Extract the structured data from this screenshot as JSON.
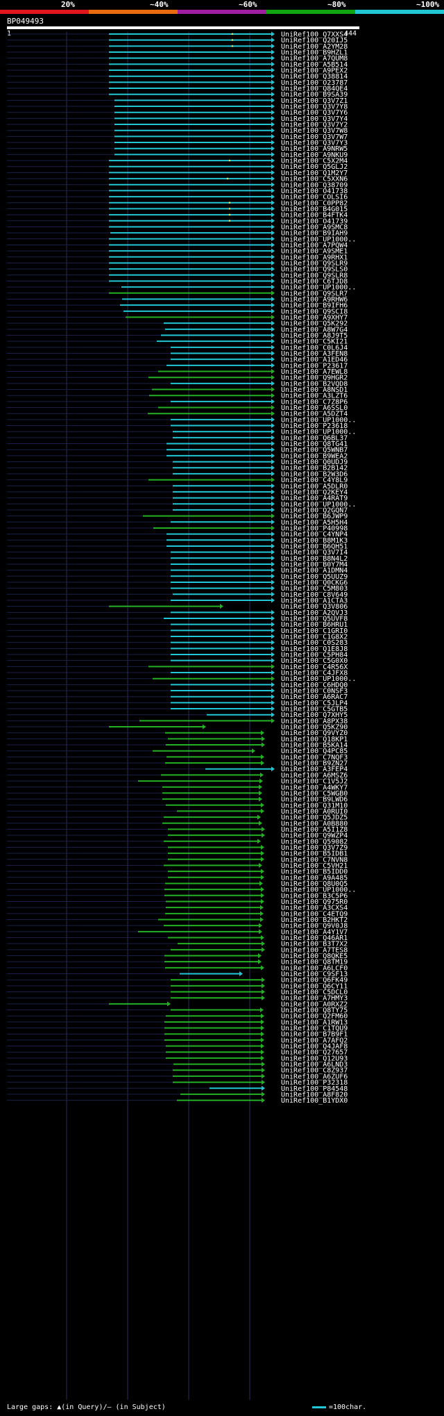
{
  "legend": {
    "labels": [
      "20%",
      "~40%",
      "~60%",
      "~80%",
      "~100%"
    ],
    "colors": [
      "#e0161c",
      "#e86c0f",
      "#a01fa0",
      "#11a511",
      "#22c7d6"
    ]
  },
  "query": {
    "id": "BP049493",
    "start": "1",
    "end": "444"
  },
  "colors": {
    "cyan": "#22c7d6",
    "green": "#24b024",
    "grid": "#2a2f5a"
  },
  "hits": [
    {
      "name": "UniRef100_Q7XXS4",
      "start": 157,
      "color": "c",
      "note": [
        335
      ]
    },
    {
      "name": "UniRef100_Q20IJ5",
      "start": 157,
      "color": "c",
      "note": [
        335
      ]
    },
    {
      "name": "UniRef100_A2YM28",
      "start": 157,
      "color": "c",
      "note": [
        335
      ]
    },
    {
      "name": "UniRef100_B9HZL1",
      "start": 157,
      "color": "c"
    },
    {
      "name": "UniRef100_A7QUM8",
      "start": 157,
      "color": "c"
    },
    {
      "name": "UniRef100_A5B514",
      "start": 157,
      "color": "c"
    },
    {
      "name": "UniRef100_A9PEX2",
      "start": 157,
      "color": "c"
    },
    {
      "name": "UniRef100_Q38814",
      "start": 157,
      "color": "c"
    },
    {
      "name": "UniRef100_O23787",
      "start": 157,
      "color": "c"
    },
    {
      "name": "UniRef100_Q84QE4",
      "start": 157,
      "color": "c"
    },
    {
      "name": "UniRef100_B9SA39",
      "start": 157,
      "color": "c"
    },
    {
      "name": "UniRef100_Q3V7Z1",
      "start": 165,
      "color": "c"
    },
    {
      "name": "UniRef100_Q3V7Y8",
      "start": 165,
      "color": "c"
    },
    {
      "name": "UniRef100_Q3V7Y6",
      "start": 165,
      "color": "c"
    },
    {
      "name": "UniRef100_Q3V7Y4",
      "start": 165,
      "color": "c"
    },
    {
      "name": "UniRef100_Q3V7Y2",
      "start": 165,
      "color": "c"
    },
    {
      "name": "UniRef100_Q3V7W8",
      "start": 165,
      "color": "c"
    },
    {
      "name": "UniRef100_Q3V7W7",
      "start": 165,
      "color": "c"
    },
    {
      "name": "UniRef100_Q3V7Y3",
      "start": 165,
      "color": "c"
    },
    {
      "name": "UniRef100_A9NRW5",
      "start": 165,
      "color": "c"
    },
    {
      "name": "UniRef100_A9NKU9",
      "start": 165,
      "color": "c"
    },
    {
      "name": "UniRef100_C5X2M4",
      "start": 157,
      "color": "c",
      "note": [
        331
      ]
    },
    {
      "name": "UniRef100_Q5GLJ2",
      "start": 157,
      "color": "c"
    },
    {
      "name": "UniRef100_Q1M2Y7",
      "start": 157,
      "color": "c"
    },
    {
      "name": "UniRef100_C5XXN6",
      "start": 157,
      "color": "c",
      "note": [
        328
      ]
    },
    {
      "name": "UniRef100_Q38709",
      "start": 157,
      "color": "c"
    },
    {
      "name": "UniRef100_O41738",
      "start": 157,
      "color": "c"
    },
    {
      "name": "UniRef100_COLSI6",
      "start": 157,
      "color": "c"
    },
    {
      "name": "UniRef100_C0PP82",
      "start": 157,
      "color": "c",
      "note": [
        331
      ]
    },
    {
      "name": "UniRef100_B4G015",
      "start": 157,
      "color": "c",
      "note": [
        331
      ]
    },
    {
      "name": "UniRef100_B4FTK4",
      "start": 157,
      "color": "c",
      "note": [
        331
      ]
    },
    {
      "name": "UniRef100_O41739",
      "start": 157,
      "color": "c",
      "note": [
        331
      ]
    },
    {
      "name": "UniRef100_A9SMC8",
      "start": 157,
      "color": "c"
    },
    {
      "name": "UniRef100_B9IAH9",
      "start": 159,
      "color": "c"
    },
    {
      "name": "UniRef100_UP1000..",
      "start": 157,
      "color": "c"
    },
    {
      "name": "UniRef100_A7PQW4",
      "start": 157,
      "color": "c"
    },
    {
      "name": "UniRef100_A9SME1",
      "start": 157,
      "color": "c"
    },
    {
      "name": "UniRef100_A9RHX1",
      "start": 157,
      "color": "c"
    },
    {
      "name": "UniRef100_Q9SLR9",
      "start": 157,
      "color": "c"
    },
    {
      "name": "UniRef100_Q9SLS0",
      "start": 157,
      "color": "c"
    },
    {
      "name": "UniRef100_Q9SLR8",
      "start": 157,
      "color": "c"
    },
    {
      "name": "UniRef100_C6TJD8",
      "start": 157,
      "color": "c"
    },
    {
      "name": "UniRef100_UP1000..",
      "start": 175,
      "color": "c"
    },
    {
      "name": "UniRef100_Q9SLR7",
      "start": 157,
      "color": "g"
    },
    {
      "name": "UniRef100_A9RHW6",
      "start": 176,
      "color": "c"
    },
    {
      "name": "UniRef100_B9IFH6",
      "start": 173,
      "color": "c"
    },
    {
      "name": "UniRef100_Q9SCI8",
      "start": 178,
      "color": "c"
    },
    {
      "name": "UniRef100_A9XHY7",
      "start": 181,
      "color": "g"
    },
    {
      "name": "UniRef100_Q5K292",
      "start": 236,
      "color": "c"
    },
    {
      "name": "UniRef100_A8W7G4",
      "start": 238,
      "color": "c"
    },
    {
      "name": "UniRef100_A8J9T5",
      "start": 232,
      "color": "c"
    },
    {
      "name": "UniRef100_C5KI21",
      "start": 226,
      "color": "c"
    },
    {
      "name": "UniRef100_C0L6J4",
      "start": 246,
      "color": "c"
    },
    {
      "name": "UniRef100_A3FEN8",
      "start": 246,
      "color": "c"
    },
    {
      "name": "UniRef100_A1ED46",
      "start": 246,
      "color": "c"
    },
    {
      "name": "UniRef100_P23617",
      "start": 240,
      "color": "c"
    },
    {
      "name": "UniRef100_A7EWL8",
      "start": 228,
      "color": "g"
    },
    {
      "name": "UniRef100_Q9HGR2",
      "start": 214,
      "color": "g"
    },
    {
      "name": "UniRef100_B2VQD8",
      "start": 246,
      "color": "c"
    },
    {
      "name": "UniRef100_A8NSD1",
      "start": 219,
      "color": "g"
    },
    {
      "name": "UniRef100_A3LZT6",
      "start": 215,
      "color": "g"
    },
    {
      "name": "UniRef100_C7Z8P6",
      "start": 246,
      "color": "c"
    },
    {
      "name": "UniRef100_A6SSL0",
      "start": 228,
      "color": "g"
    },
    {
      "name": "UniRef100_A5DZT4",
      "start": 213,
      "color": "g"
    },
    {
      "name": "UniRef100_UP1000..",
      "start": 246,
      "color": "c"
    },
    {
      "name": "UniRef100_P23618",
      "start": 246,
      "color": "c"
    },
    {
      "name": "UniRef100_UP1000..",
      "start": 249,
      "color": "c"
    },
    {
      "name": "UniRef100_Q6BL37",
      "start": 249,
      "color": "c"
    },
    {
      "name": "UniRef100_Q8TG41",
      "start": 240,
      "color": "c"
    },
    {
      "name": "UniRef100_Q5WNB7",
      "start": 240,
      "color": "c"
    },
    {
      "name": "UniRef100_B9WEA2",
      "start": 240,
      "color": "c"
    },
    {
      "name": "UniRef100_Q0UDJ9",
      "start": 249,
      "color": "c"
    },
    {
      "name": "UniRef100_B2B142",
      "start": 249,
      "color": "c"
    },
    {
      "name": "UniRef100_B2W3D6",
      "start": 249,
      "color": "c"
    },
    {
      "name": "UniRef100_C4Y8L9",
      "start": 214,
      "color": "g"
    },
    {
      "name": "UniRef100_A5DLR0",
      "start": 249,
      "color": "c"
    },
    {
      "name": "UniRef100_Q2KEY4",
      "start": 249,
      "color": "c"
    },
    {
      "name": "UniRef100_A4RAT9",
      "start": 249,
      "color": "c"
    },
    {
      "name": "UniRef100_UP1000..",
      "start": 249,
      "color": "c"
    },
    {
      "name": "UniRef100_Q2GQN7",
      "start": 249,
      "color": "c"
    },
    {
      "name": "UniRef100_B6JWP9",
      "start": 206,
      "color": "g"
    },
    {
      "name": "UniRef100_A5H5H4",
      "start": 246,
      "color": "c"
    },
    {
      "name": "UniRef100_P40998",
      "start": 221,
      "color": "g"
    },
    {
      "name": "UniRef100_C4YNP4",
      "start": 240,
      "color": "c"
    },
    {
      "name": "UniRef100_B8M1K3",
      "start": 240,
      "color": "c"
    },
    {
      "name": "UniRef100_B6QH51",
      "start": 240,
      "color": "c"
    },
    {
      "name": "UniRef100_Q3V7I4",
      "start": 246,
      "color": "c"
    },
    {
      "name": "UniRef100_B8N4L2",
      "start": 246,
      "color": "c"
    },
    {
      "name": "UniRef100_B0Y7M4",
      "start": 246,
      "color": "c"
    },
    {
      "name": "UniRef100_A1DMN4",
      "start": 246,
      "color": "c"
    },
    {
      "name": "UniRef100_Q5UUZ9",
      "start": 246,
      "color": "c"
    },
    {
      "name": "UniRef100_Q0CKG6",
      "start": 246,
      "color": "c"
    },
    {
      "name": "UniRef100_C5M803",
      "start": 246,
      "color": "c"
    },
    {
      "name": "UniRef100_C8V649",
      "start": 249,
      "color": "c"
    },
    {
      "name": "UniRef100_A1CTA3",
      "start": 246,
      "color": "c"
    },
    {
      "name": "UniRef100_Q3V806",
      "start": 157,
      "color": "g",
      "end": 322
    },
    {
      "name": "UniRef100_A2QVJ3",
      "start": 246,
      "color": "c"
    },
    {
      "name": "UniRef100_Q5UVF8",
      "start": 236,
      "color": "c"
    },
    {
      "name": "UniRef100_B6HRU1",
      "start": 246,
      "color": "c"
    },
    {
      "name": "UniRef100_C1GRI0",
      "start": 246,
      "color": "c"
    },
    {
      "name": "UniRef100_C1G8X2",
      "start": 246,
      "color": "c"
    },
    {
      "name": "UniRef100_C0S283",
      "start": 246,
      "color": "c"
    },
    {
      "name": "UniRef100_Q1E8J8",
      "start": 246,
      "color": "c"
    },
    {
      "name": "UniRef100_C5PH84",
      "start": 246,
      "color": "c"
    },
    {
      "name": "UniRef100_C5G0X0",
      "start": 246,
      "color": "c"
    },
    {
      "name": "UniRef100_C4R56X",
      "start": 214,
      "color": "g"
    },
    {
      "name": "UniRef100_C4JFX8",
      "start": 246,
      "color": "c"
    },
    {
      "name": "UniRef100_UP1000..",
      "start": 220,
      "color": "g"
    },
    {
      "name": "UniRef100_C6HDQ0",
      "start": 246,
      "color": "c"
    },
    {
      "name": "UniRef100_C0NSF3",
      "start": 246,
      "color": "c"
    },
    {
      "name": "UniRef100_A6RAC7",
      "start": 246,
      "color": "c"
    },
    {
      "name": "UniRef100_C5JLP4",
      "start": 246,
      "color": "c"
    },
    {
      "name": "UniRef100_C5GTB5",
      "start": 246,
      "color": "c"
    },
    {
      "name": "UniRef100_Q7XHY5",
      "start": 298,
      "color": "c"
    },
    {
      "name": "UniRef100_A8PX38",
      "start": 201,
      "color": "g"
    },
    {
      "name": "UniRef100_Q5KZ90",
      "start": 157,
      "color": "g",
      "end": 297
    },
    {
      "name": "UniRef100_Q9VYZ0",
      "start": 238,
      "color": "g",
      "end": 381
    },
    {
      "name": "UniRef100_Q18KP1",
      "start": 242,
      "color": "g",
      "end": 382
    },
    {
      "name": "UniRef100_B5KA14",
      "start": 239,
      "color": "g",
      "end": 382
    },
    {
      "name": "UniRef100_Q4PC85",
      "start": 220,
      "color": "g",
      "end": 368
    },
    {
      "name": "UniRef100_C7NQF3",
      "start": 240,
      "color": "g",
      "end": 381
    },
    {
      "name": "UniRef100_B9ZN27",
      "start": 238,
      "color": "g",
      "end": 381
    },
    {
      "name": "UniRef100_A3FEP4",
      "start": 296,
      "color": "c"
    },
    {
      "name": "UniRef100_A6MSZ6",
      "start": 232,
      "color": "g",
      "end": 380
    },
    {
      "name": "UniRef100_C1V5J2",
      "start": 199,
      "color": "g",
      "end": 379
    },
    {
      "name": "UniRef100_A4WKY7",
      "start": 234,
      "color": "g",
      "end": 378
    },
    {
      "name": "UniRef100_C5WGB0",
      "start": 234,
      "color": "g",
      "end": 378
    },
    {
      "name": "UniRef100_B9LWD6",
      "start": 234,
      "color": "g",
      "end": 378
    },
    {
      "name": "UniRef100_Q31M10",
      "start": 239,
      "color": "g",
      "end": 381
    },
    {
      "name": "UniRef100_A0RUI0",
      "start": 255,
      "color": "g",
      "end": 381
    },
    {
      "name": "UniRef100_Q5JDZ5",
      "start": 236,
      "color": "g",
      "end": 376
    },
    {
      "name": "UniRef100_A0B880",
      "start": 234,
      "color": "g",
      "end": 378
    },
    {
      "name": "UniRef100_A5I1Z8",
      "start": 242,
      "color": "g",
      "end": 382
    },
    {
      "name": "UniRef100_Q9WZP4",
      "start": 242,
      "color": "g",
      "end": 382
    },
    {
      "name": "UniRef100_Q59082",
      "start": 236,
      "color": "g",
      "end": 376
    },
    {
      "name": "UniRef100_Q3V7Z9",
      "start": 242,
      "color": "g",
      "end": 381
    },
    {
      "name": "UniRef100_B5IDB1",
      "start": 242,
      "color": "g",
      "end": 381
    },
    {
      "name": "UniRef100_C7NVN8",
      "start": 242,
      "color": "g",
      "end": 381
    },
    {
      "name": "UniRef100_C5VH21",
      "start": 236,
      "color": "g",
      "end": 378
    },
    {
      "name": "UniRef100_B5IDD0",
      "start": 242,
      "color": "g",
      "end": 381
    },
    {
      "name": "UniRef100_A9A485",
      "start": 242,
      "color": "g",
      "end": 381
    },
    {
      "name": "UniRef100_Q8U0Q5",
      "start": 238,
      "color": "g",
      "end": 379
    },
    {
      "name": "UniRef100_UP1000..",
      "start": 237,
      "color": "g",
      "end": 381
    },
    {
      "name": "UniRef100_B3C5P6",
      "start": 237,
      "color": "g",
      "end": 381
    },
    {
      "name": "UniRef100_Q975R0",
      "start": 239,
      "color": "g",
      "end": 381
    },
    {
      "name": "UniRef100_A3CXS4",
      "start": 239,
      "color": "g",
      "end": 380
    },
    {
      "name": "UniRef100_C4ETQ9",
      "start": 238,
      "color": "g",
      "end": 380
    },
    {
      "name": "UniRef100_B2HKT2",
      "start": 228,
      "color": "g",
      "end": 380
    },
    {
      "name": "UniRef100_Q9V0J8",
      "start": 236,
      "color": "g",
      "end": 378
    },
    {
      "name": "UniRef100_A4Y1V7",
      "start": 199,
      "color": "g",
      "end": 378
    },
    {
      "name": "UniRef100_Q46AR1",
      "start": 242,
      "color": "g",
      "end": 381
    },
    {
      "name": "UniRef100_B3T7X2",
      "start": 256,
      "color": "g",
      "end": 382
    },
    {
      "name": "UniRef100_A7TES8",
      "start": 246,
      "color": "g",
      "end": 382
    },
    {
      "name": "UniRef100_Q8QKE5",
      "start": 237,
      "color": "g",
      "end": 377
    },
    {
      "name": "UniRef100_Q8TM19",
      "start": 237,
      "color": "g",
      "end": 377
    },
    {
      "name": "UniRef100_A6LCF0",
      "start": 238,
      "color": "g",
      "end": 381
    },
    {
      "name": "UniRef100_C9SF13",
      "start": 259,
      "color": "c",
      "end": 350
    },
    {
      "name": "UniRef100_Q6FK49",
      "start": 246,
      "color": "g",
      "end": 382
    },
    {
      "name": "UniRef100_Q6CY11",
      "start": 246,
      "color": "g",
      "end": 382
    },
    {
      "name": "UniRef100_C5DCL0",
      "start": 246,
      "color": "g",
      "end": 382
    },
    {
      "name": "UniRef100_A7HMY3",
      "start": 246,
      "color": "g",
      "end": 382
    },
    {
      "name": "UniRef100_A0RXZ2",
      "start": 157,
      "color": "g",
      "end": 246
    },
    {
      "name": "UniRef100_Q8TY75",
      "start": 246,
      "color": "g",
      "end": 380
    },
    {
      "name": "UniRef100_Q2FM60",
      "start": 239,
      "color": "g",
      "end": 381
    },
    {
      "name": "UniRef100_A1RW13",
      "start": 237,
      "color": "g",
      "end": 381
    },
    {
      "name": "UniRef100_C1TQU9",
      "start": 237,
      "color": "g",
      "end": 381
    },
    {
      "name": "UniRef100_B7B9F1",
      "start": 237,
      "color": "g",
      "end": 381
    },
    {
      "name": "UniRef100_A7AFQ2",
      "start": 237,
      "color": "g",
      "end": 381
    },
    {
      "name": "UniRef100_Q4JAF8",
      "start": 239,
      "color": "g",
      "end": 381
    },
    {
      "name": "UniRef100_Q27657",
      "start": 239,
      "color": "g",
      "end": 381
    },
    {
      "name": "UniRef100_Q12U93",
      "start": 239,
      "color": "g",
      "end": 381
    },
    {
      "name": "UniRef100_A6LND3",
      "start": 250,
      "color": "g",
      "end": 382
    },
    {
      "name": "UniRef100_C8Z937",
      "start": 249,
      "color": "g",
      "end": 382
    },
    {
      "name": "UniRef100_A6ZUF6",
      "start": 249,
      "color": "g",
      "end": 382
    },
    {
      "name": "UniRef100_P32318",
      "start": 249,
      "color": "g",
      "end": 382
    },
    {
      "name": "UniRef100_P84548",
      "start": 302,
      "color": "c",
      "end": 382
    },
    {
      "name": "UniRef100_A8F820",
      "start": 260,
      "color": "g",
      "end": 382
    },
    {
      "name": "UniRef100_B1YDX0",
      "start": 255,
      "color": "g",
      "end": 382
    }
  ],
  "footer": {
    "gaps": "Large gaps: ▲(in Query)/– (in Subject)",
    "scale": "=100char."
  }
}
